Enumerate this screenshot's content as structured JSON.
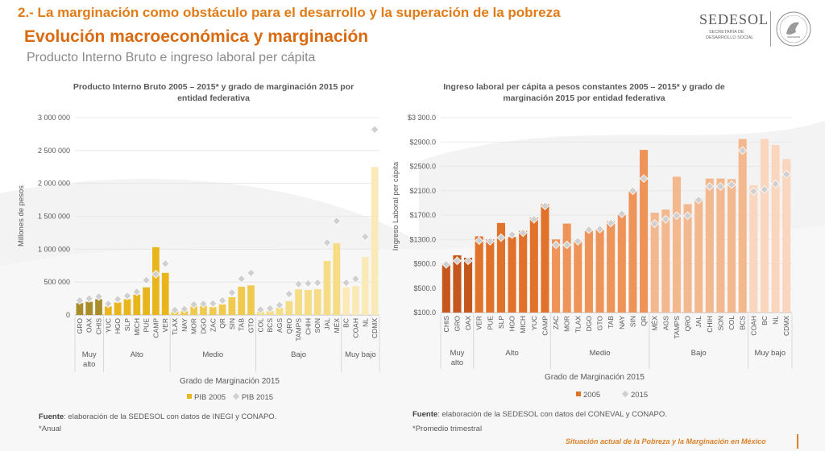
{
  "header": {
    "section": "2.- La marginación como obstáculo para el desarrollo y la superación de la pobreza",
    "title": "Evolución macroeconómica y marginación",
    "subtitle": "Producto Interno Bruto e ingreso laboral per cápita"
  },
  "logo": {
    "name": "SEDESOL",
    "line1": "SECRETARÍA DE",
    "line2": "DESARROLLO SOCIAL"
  },
  "colors": {
    "accent": "#e07b16",
    "pib_muy_alto": "#a98d2a",
    "pib_alto": "#e8b51c",
    "pib_medio": "#f0ca4e",
    "pib_bajo": "#f6dc84",
    "pib_muy_bajo": "#faeab7",
    "ing_muy_alto": "#c4571c",
    "ing_alto": "#e0722a",
    "ing_medio": "#ee9458",
    "ing_bajo": "#f4b88e",
    "ing_muy_bajo": "#f9d6bd",
    "marker": "#bfbfbf"
  },
  "chart_data": [
    {
      "type": "bar",
      "title": "Producto Interno Bruto 2005 – 2015*  y grado de marginación 2015 por entidad federativa",
      "xlabel": "Grado de Marginación 2015",
      "ylabel": "Millones de pesos",
      "ylim": [
        0,
        3000000
      ],
      "yticks": [
        0,
        500000,
        1000000,
        1500000,
        2000000,
        2500000,
        3000000
      ],
      "ytick_labels": [
        "0",
        "500 000",
        "1 000 000",
        "1 500 000",
        "2 000 000",
        "2 500 000",
        "3 000 000"
      ],
      "categories": [
        "GRO",
        "OAX",
        "CHIS",
        "YUC",
        "HGO",
        "SLP",
        "MICH",
        "PUE",
        "CAMP",
        "VER",
        "TLAX",
        "NAY",
        "MOR",
        "DGO",
        "ZAC",
        "QR",
        "SIN",
        "TAB",
        "GTO",
        "COL",
        "BCS",
        "AGS",
        "QRO",
        "TAMPS",
        "CHIH",
        "SON",
        "JAL",
        "MÉX",
        "BC",
        "COAH",
        "NL",
        "CDMX"
      ],
      "groups": [
        {
          "label": "Muy\nalto",
          "count": 3,
          "color_key": "pib_muy_alto"
        },
        {
          "label": "Alto",
          "count": 7,
          "color_key": "pib_alto"
        },
        {
          "label": "Medio",
          "count": 9,
          "color_key": "pib_medio"
        },
        {
          "label": "Bajo",
          "count": 9,
          "color_key": "pib_bajo"
        },
        {
          "label": "Muy bajo",
          "count": 4,
          "color_key": "pib_muy_bajo"
        }
      ],
      "series": [
        {
          "name": "PIB 2005",
          "kind": "bar",
          "values": [
            180000,
            200000,
            240000,
            130000,
            190000,
            240000,
            310000,
            420000,
            1030000,
            640000,
            55000,
            60000,
            130000,
            140000,
            120000,
            160000,
            270000,
            430000,
            450000,
            55000,
            60000,
            110000,
            210000,
            390000,
            380000,
            390000,
            820000,
            1090000,
            420000,
            440000,
            880000,
            2250000
          ]
        },
        {
          "name": "PIB 2015",
          "kind": "marker",
          "values": [
            220000,
            250000,
            280000,
            170000,
            240000,
            290000,
            350000,
            530000,
            620000,
            780000,
            75000,
            90000,
            160000,
            170000,
            175000,
            220000,
            340000,
            550000,
            640000,
            80000,
            100000,
            150000,
            320000,
            470000,
            480000,
            490000,
            1100000,
            1430000,
            490000,
            550000,
            1190000,
            2820000
          ]
        }
      ],
      "legend": {
        "position": "bottom",
        "items": [
          "PIB 2005",
          "PIB 2015"
        ]
      }
    },
    {
      "type": "bar",
      "title": "Ingreso laboral per cápita a pesos constantes 2005 – 2015*  y grado de marginación 2015 por entidad federativa",
      "xlabel": "Grado de Marginación 2015",
      "ylabel": "Ingreso Laboral per cápita",
      "ylim": [
        100,
        3300
      ],
      "yticks": [
        100,
        500,
        900,
        1300,
        1700,
        2100,
        2500,
        2900,
        3300
      ],
      "ytick_labels": [
        "$100.0",
        "$500.0",
        "$900.0",
        "$1300.0",
        "$1700.0",
        "$2100.0",
        "$2500.0",
        "$2900.0",
        "$3 300.0"
      ],
      "categories": [
        "CHIS",
        "GRO",
        "OAX",
        "VER",
        "PUE",
        "SLP",
        "HGO",
        "MICH",
        "YUC",
        "CAMP",
        "ZAC",
        "MOR",
        "TLAX",
        "DGO",
        "GTO",
        "TAB",
        "NAY",
        "SIN",
        "QR",
        "MÉX",
        "AGS",
        "TAMPS",
        "QRO",
        "JAL",
        "CHIH",
        "SON",
        "COL",
        "BCS",
        "COAH",
        "BC",
        "NL",
        "CDMX"
      ],
      "groups": [
        {
          "label": "Muy\nalto",
          "count": 3,
          "color_key": "ing_muy_alto"
        },
        {
          "label": "Alto",
          "count": 7,
          "color_key": "ing_alto"
        },
        {
          "label": "Medio",
          "count": 9,
          "color_key": "ing_medio"
        },
        {
          "label": "Bajo",
          "count": 9,
          "color_key": "ing_bajo"
        },
        {
          "label": "Muy bajo",
          "count": 4,
          "color_key": "ing_muy_bajo"
        }
      ],
      "series": [
        {
          "name": "2005",
          "kind": "bar",
          "values": [
            900,
            1040,
            1000,
            1350,
            1300,
            1570,
            1340,
            1440,
            1660,
            1880,
            1300,
            1560,
            1280,
            1440,
            1460,
            1600,
            1700,
            2100,
            2770,
            1740,
            1790,
            2330,
            1880,
            1970,
            2300,
            2300,
            2290,
            2950,
            2190,
            2950,
            2850,
            2620
          ]
        },
        {
          "name": "2015",
          "kind": "marker",
          "values": [
            890,
            950,
            950,
            1280,
            1270,
            1330,
            1380,
            1410,
            1630,
            1850,
            1210,
            1210,
            1270,
            1460,
            1470,
            1570,
            1720,
            2100,
            2300,
            1560,
            1630,
            1690,
            1690,
            1950,
            2170,
            2170,
            2200,
            2760,
            2090,
            2120,
            2210,
            2370
          ]
        }
      ],
      "legend": {
        "position": "bottom",
        "items": [
          "2005",
          "2015"
        ]
      }
    }
  ],
  "notes": {
    "left_source_label": "Fuente",
    "left_source": ": elaboración de la SEDESOL con datos de INEGI y CONAPO.",
    "left_note": "*Anual",
    "right_source_label": "Fuente",
    "right_source": ": elaboración de la SEDESOL con datos del CONEVAL y CONAPO.",
    "right_note": "*Promedio trimestral"
  },
  "footer": "Situación actual de la Pobreza y la Marginación en México"
}
